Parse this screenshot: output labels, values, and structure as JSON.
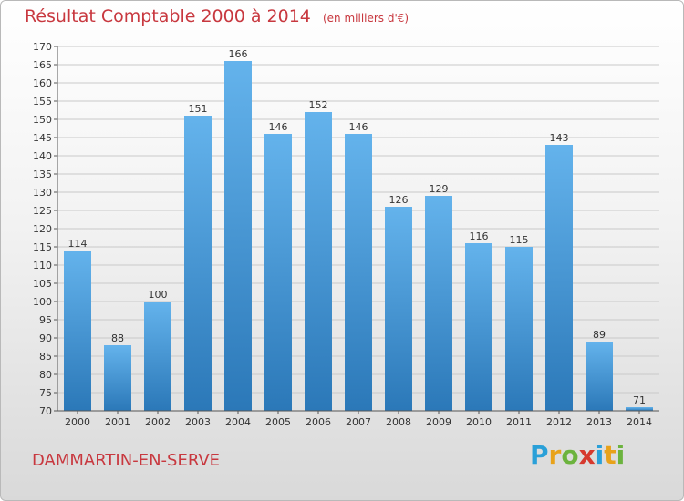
{
  "header": {
    "title": "Résultat Comptable 2000 à 2014",
    "unit": "(en milliers d'€)"
  },
  "footer": {
    "commune": "DAMMARTIN-EN-SERVE",
    "logo_letters": [
      "P",
      "r",
      "o",
      "x",
      "i",
      "t",
      "i"
    ],
    "logo_colors": [
      "#2aa0d8",
      "#e8a21a",
      "#6cb33e",
      "#d6392e",
      "#2aa0d8",
      "#e8a21a",
      "#6cb33e"
    ]
  },
  "colors": {
    "bar_top": "#64b3ec",
    "bar_bottom": "#2b78b8",
    "title": "#c8383f",
    "grid": "#c9c9c9"
  },
  "chart_data": {
    "type": "bar",
    "categories": [
      "2000",
      "2001",
      "2002",
      "2003",
      "2004",
      "2005",
      "2006",
      "2007",
      "2008",
      "2009",
      "2010",
      "2011",
      "2012",
      "2013",
      "2014"
    ],
    "values": [
      114,
      88,
      100,
      151,
      166,
      146,
      152,
      146,
      126,
      129,
      116,
      115,
      143,
      89,
      71
    ],
    "title": "Résultat Comptable 2000 à 2014",
    "subtitle": "(en milliers d'€)",
    "ylim": [
      70,
      170
    ],
    "yticks": [
      70,
      75,
      80,
      85,
      90,
      95,
      100,
      105,
      110,
      115,
      120,
      125,
      130,
      135,
      140,
      145,
      150,
      155,
      160,
      165,
      170
    ],
    "grid": true
  }
}
